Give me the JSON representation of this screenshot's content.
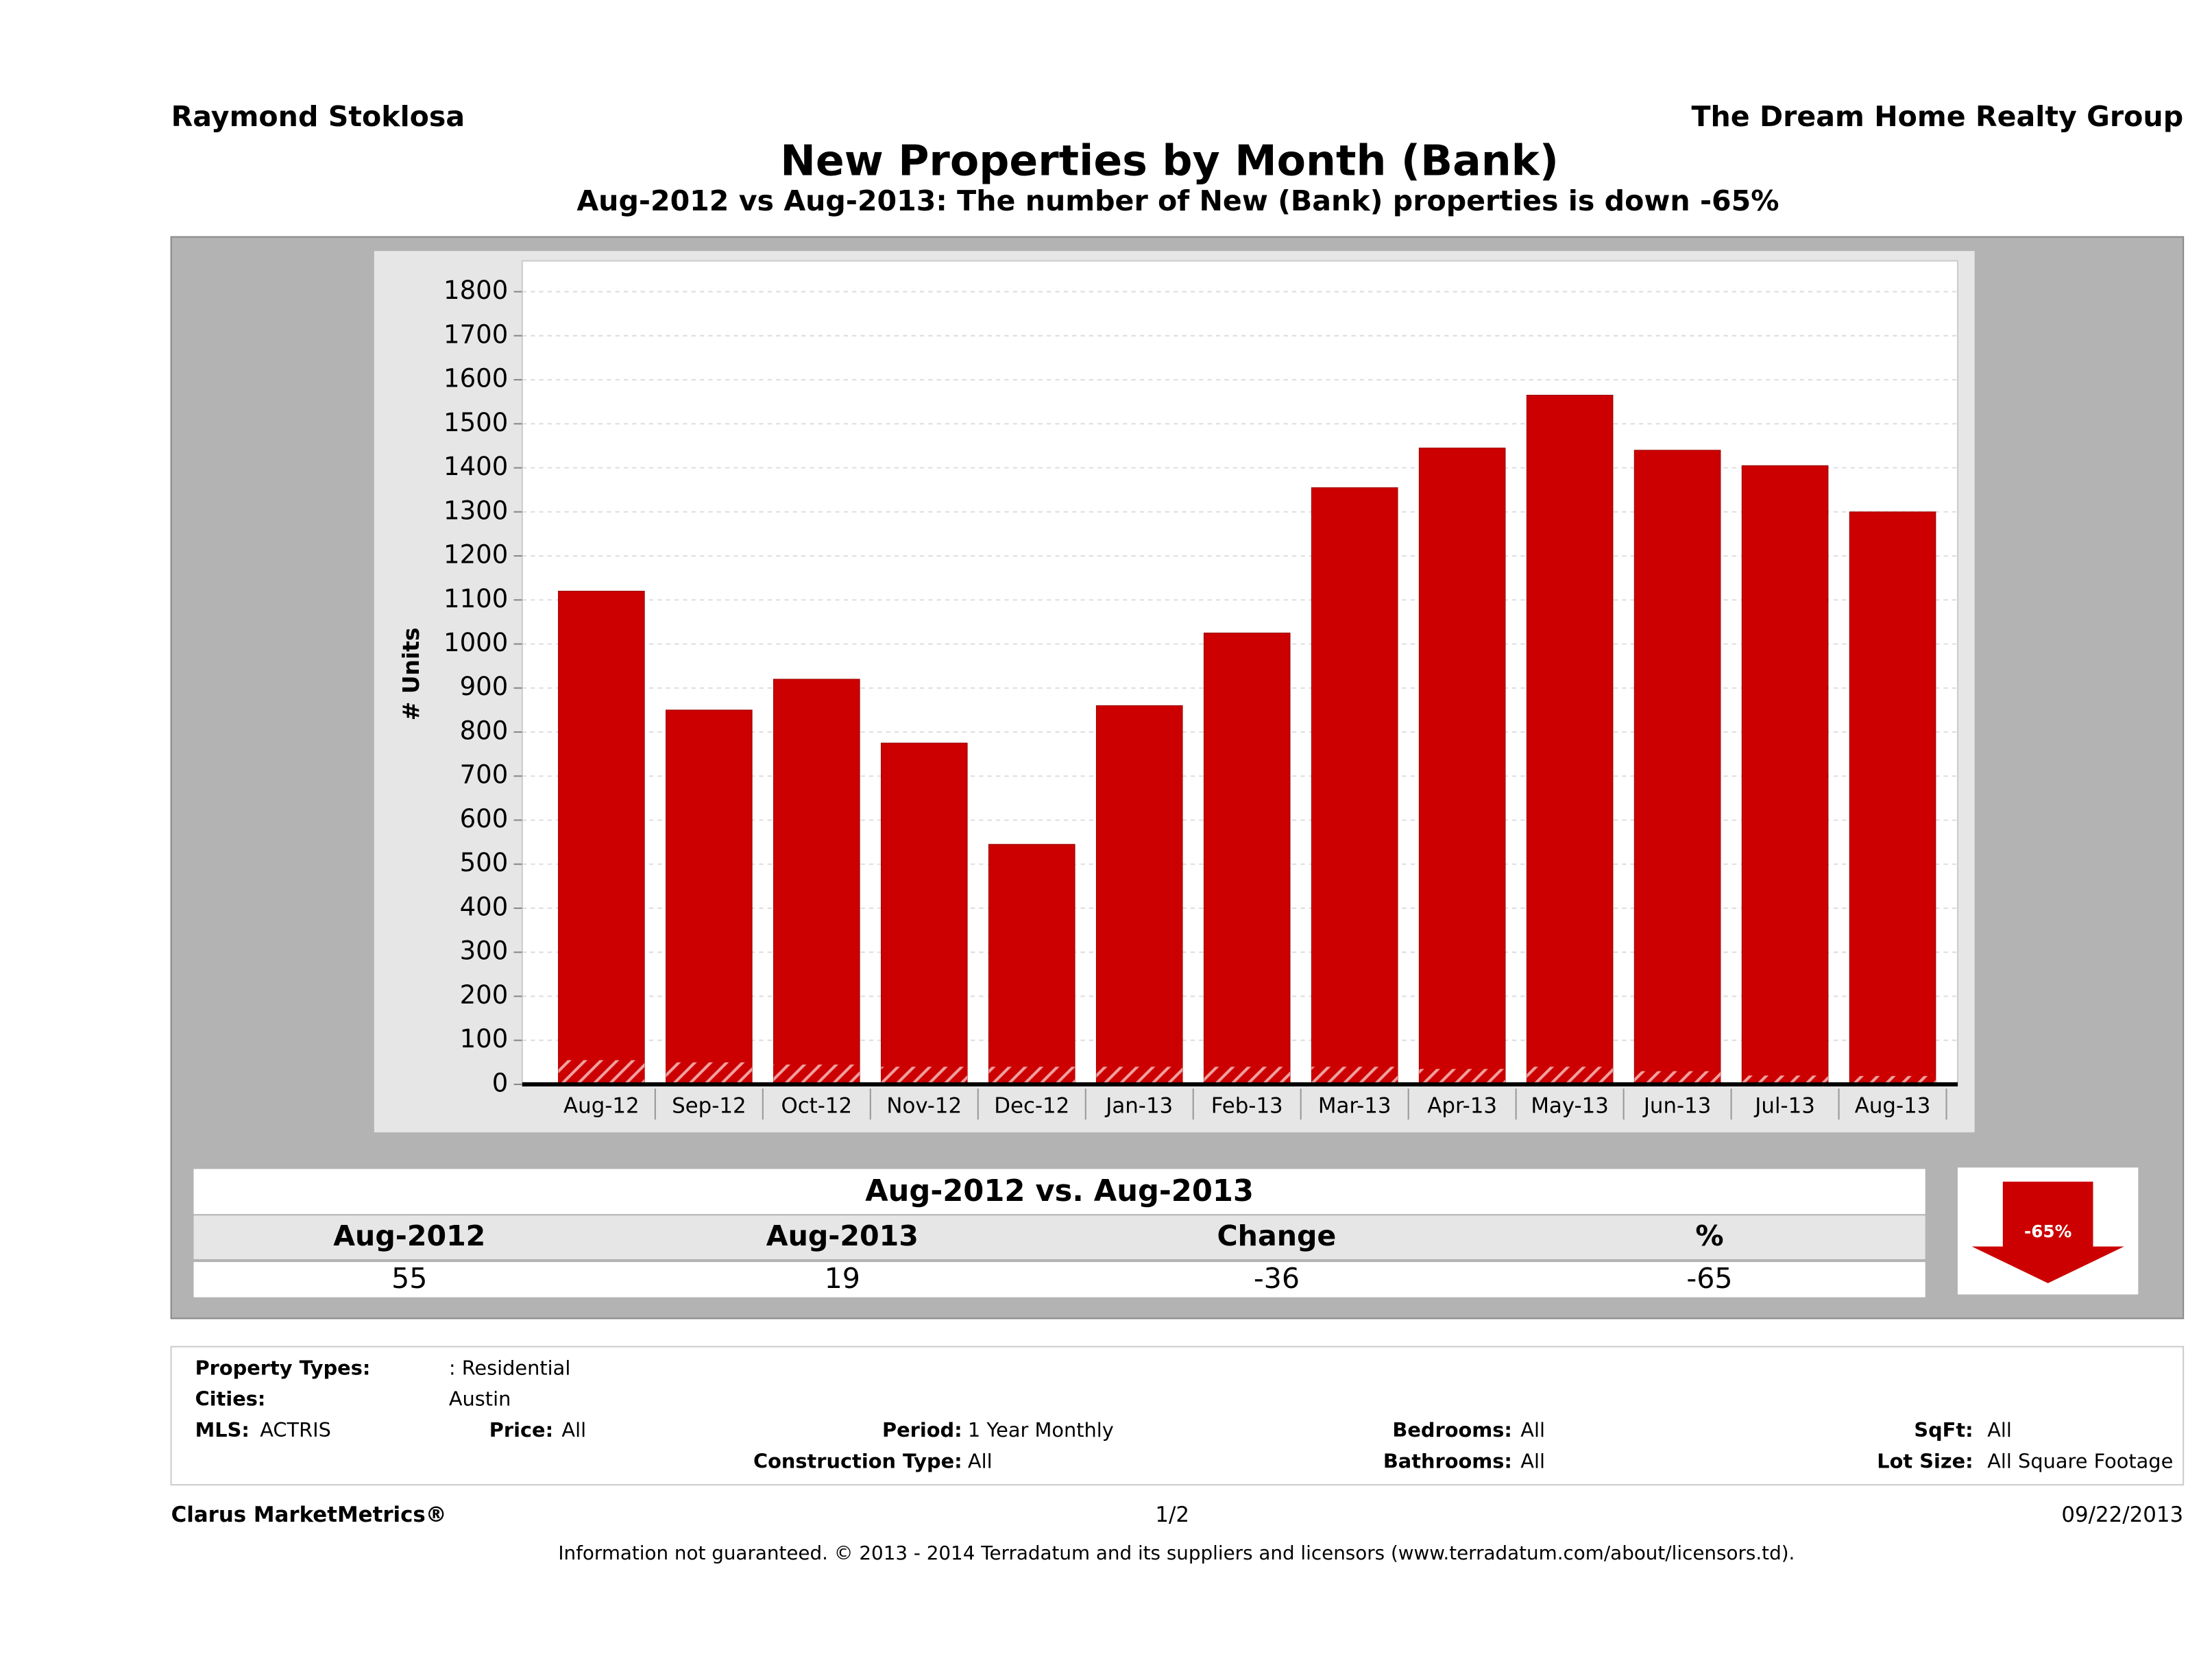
{
  "header": {
    "agent": "Raymond Stoklosa",
    "company": "The Dream Home Realty Group"
  },
  "chart_data": {
    "type": "bar",
    "title": "New Properties by Month (Bank)",
    "subtitle": "Aug-2012 vs Aug-2013: The number of New (Bank)  properties is down -65%",
    "y_label": "# Units",
    "categories": [
      "Aug-12",
      "Sep-12",
      "Oct-12",
      "Nov-12",
      "Dec-12",
      "Jan-13",
      "Feb-13",
      "Mar-13",
      "Apr-13",
      "May-13",
      "Jun-13",
      "Jul-13",
      "Aug-13"
    ],
    "series": [
      {
        "color": "#cc0000",
        "values": [
          1120,
          850,
          920,
          775,
          545,
          860,
          1025,
          1355,
          1445,
          1565,
          1440,
          1405,
          1300
        ]
      },
      {
        "color": "#cc0000",
        "pattern": "hatch",
        "values": [
          55,
          50,
          45,
          40,
          40,
          40,
          40,
          40,
          35,
          40,
          30,
          20,
          19
        ]
      }
    ],
    "ylim": [
      0,
      1870
    ],
    "yticks": [
      0,
      100,
      200,
      300,
      400,
      500,
      600,
      700,
      800,
      900,
      1000,
      1100,
      1200,
      1300,
      1400,
      1500,
      1600,
      1700,
      1800
    ],
    "grid": true
  },
  "summary": {
    "title": "Aug-2012 vs. Aug-2013",
    "headers": [
      "Aug-2012",
      "Aug-2013",
      "Change",
      "%"
    ],
    "values": [
      55,
      19,
      -36,
      -65
    ],
    "badge": "-65%"
  },
  "filters": [
    {
      "label": "Property Types:",
      "value": ": Residential"
    },
    {
      "label": "Cities:",
      "value": "Austin"
    },
    {
      "label": "MLS:",
      "value": "ACTRIS"
    },
    {
      "label": "Price:",
      "value": "All"
    },
    {
      "label": "Period:",
      "value": "1 Year Monthly"
    },
    {
      "label": "Construction Type:",
      "value": "All"
    },
    {
      "label": "Bedrooms:",
      "value": "All"
    },
    {
      "label": "Bathrooms:",
      "value": "All"
    },
    {
      "label": "SqFt:",
      "value": "All"
    },
    {
      "label": "Lot Size:",
      "value": "All Square Footage"
    }
  ],
  "footer": {
    "brand": "Clarus MarketMetrics®",
    "page": "1/2",
    "date": "09/22/2013",
    "disclaimer": "Information not guaranteed. © 2013 - 2014 Terradatum and its suppliers and licensors (www.terradatum.com/about/licensors.td)."
  }
}
